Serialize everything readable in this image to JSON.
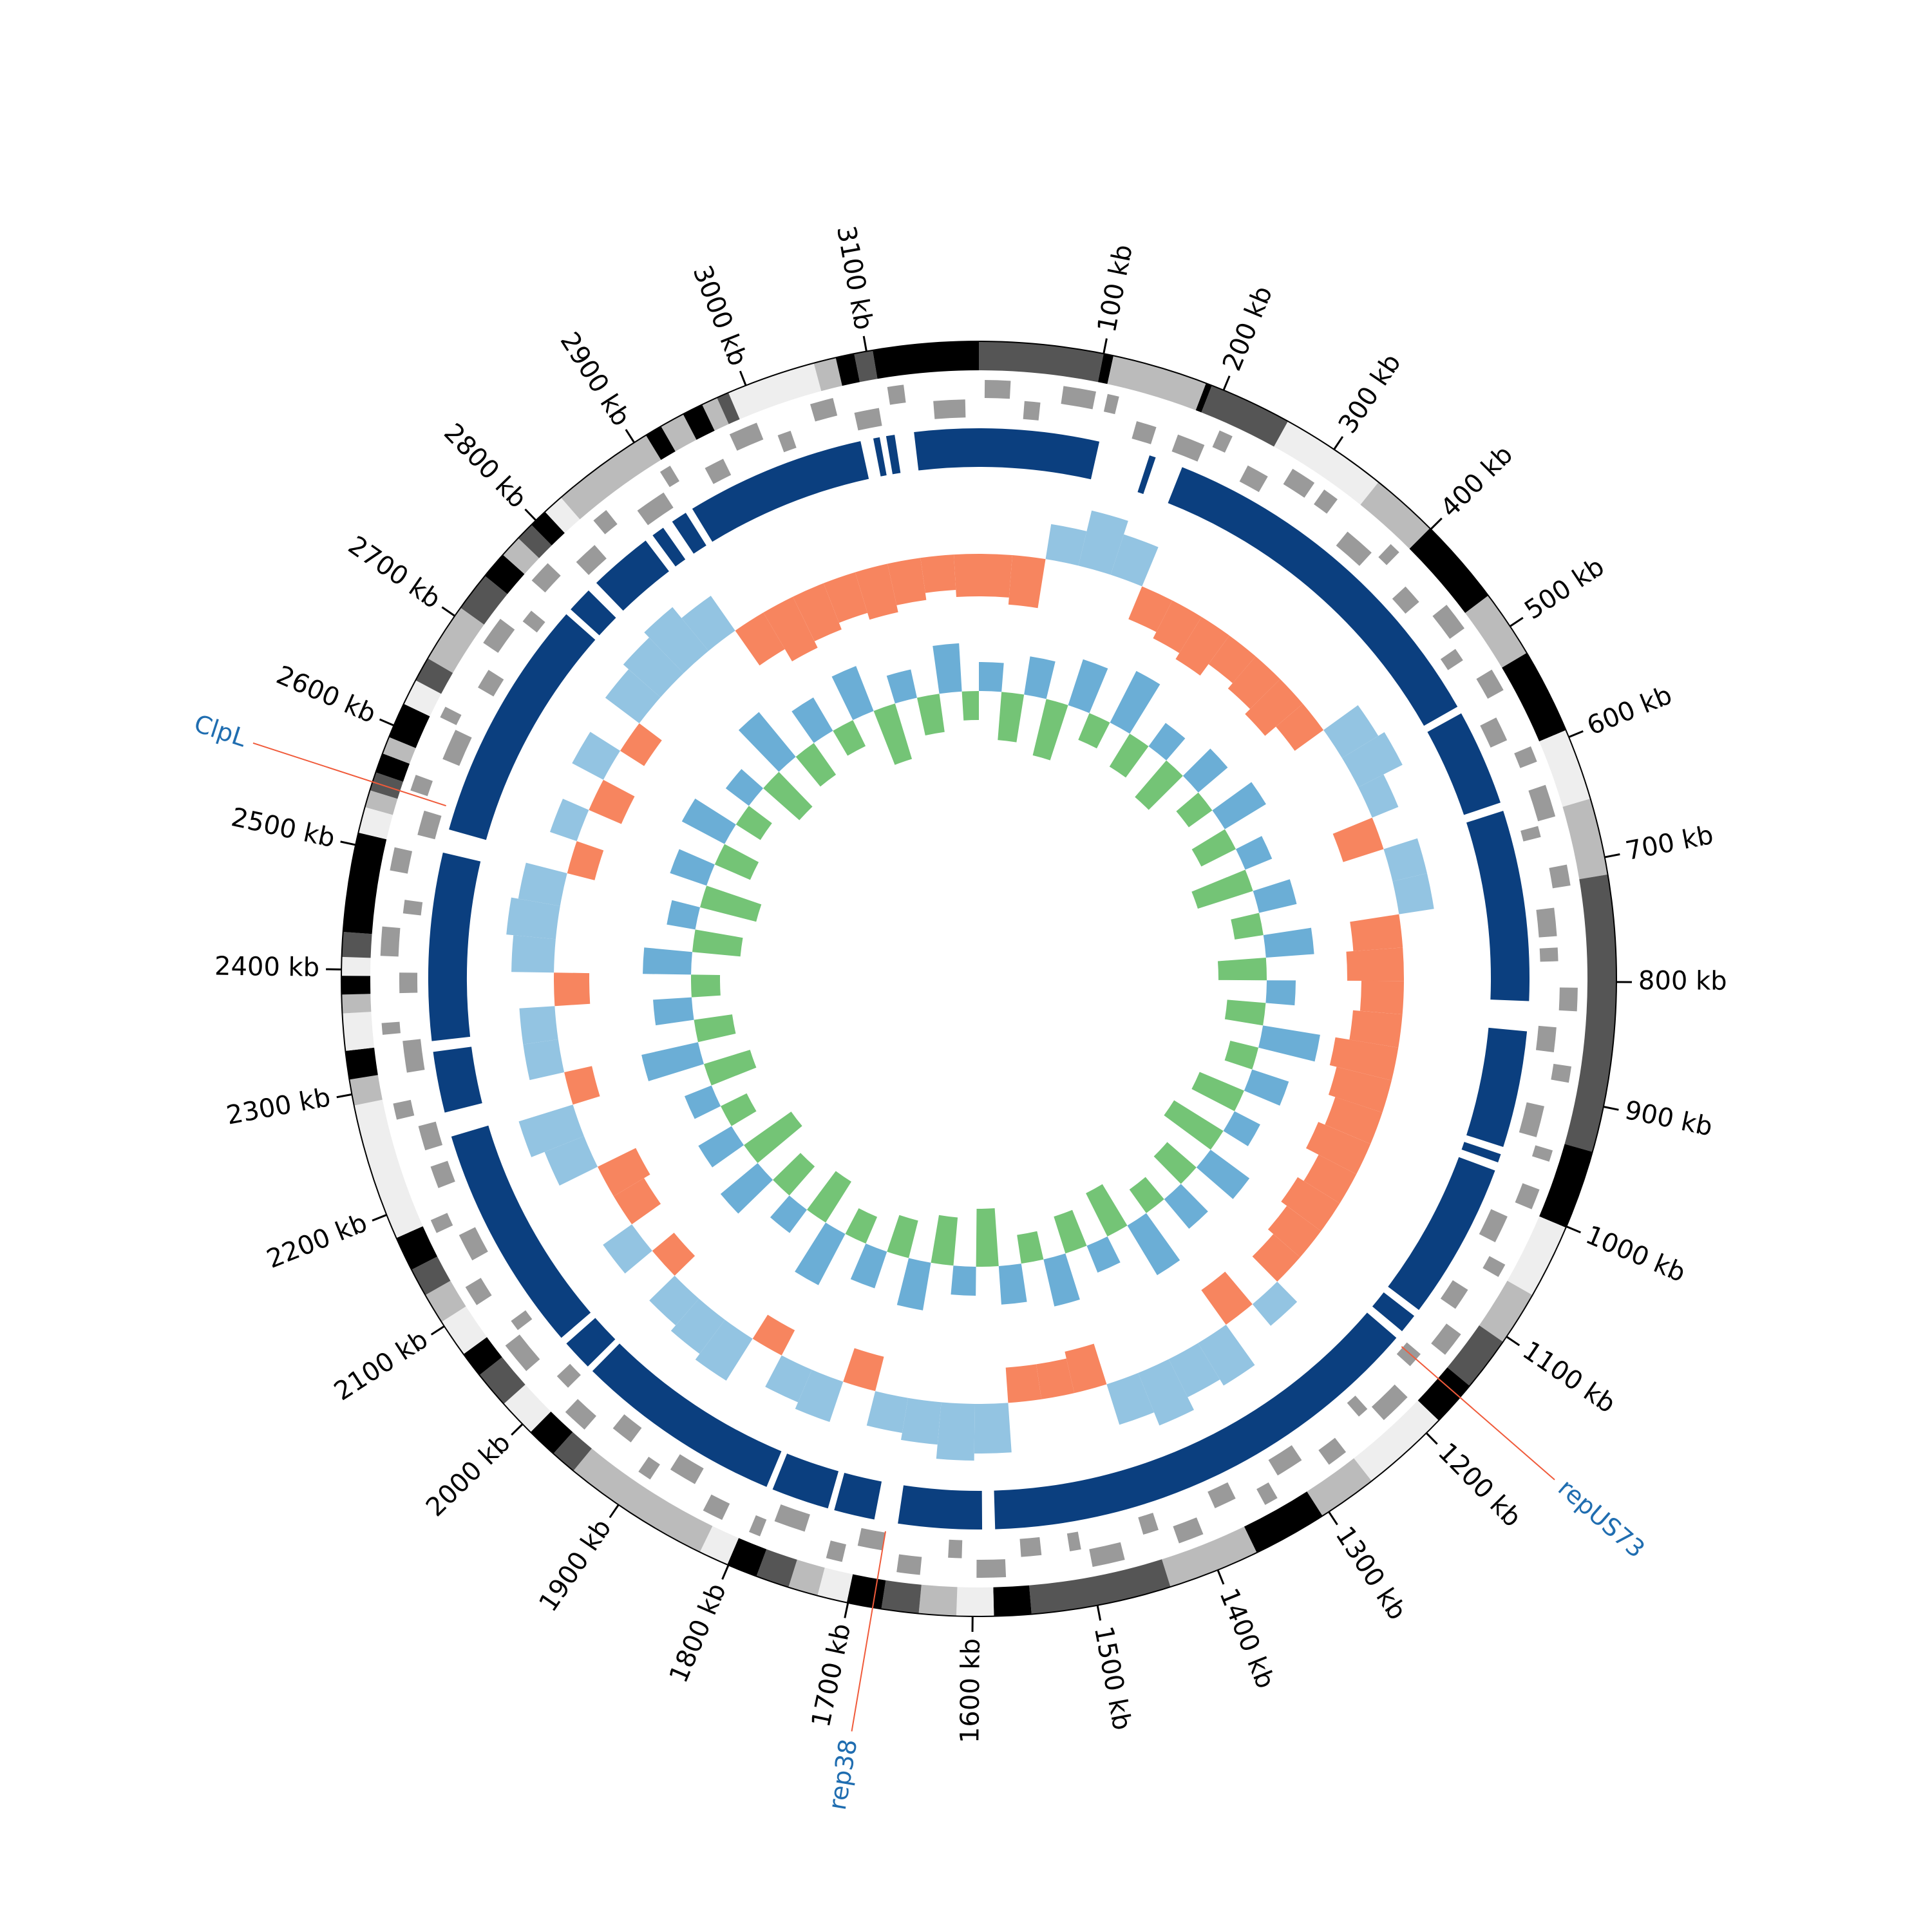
{
  "chart_data": {
    "type": "circular",
    "xlim": [
      0,
      3190
    ],
    "xticks": [
      {
        "value": 100,
        "label": "100 kb"
      },
      {
        "value": 200,
        "label": "200 kb"
      },
      {
        "value": 300,
        "label": "300 kb"
      },
      {
        "value": 400,
        "label": "400 kb"
      },
      {
        "value": 500,
        "label": "500 kb"
      },
      {
        "value": 600,
        "label": "600 kb"
      },
      {
        "value": 700,
        "label": "700 kb"
      },
      {
        "value": 800,
        "label": "800 kb"
      },
      {
        "value": 900,
        "label": "900 kb"
      },
      {
        "value": 1000,
        "label": "1000 kb"
      },
      {
        "value": 1100,
        "label": "1100 kb"
      },
      {
        "value": 1200,
        "label": "1200 kb"
      },
      {
        "value": 1300,
        "label": "1300 kb"
      },
      {
        "value": 1400,
        "label": "1400 kb"
      },
      {
        "value": 1500,
        "label": "1500 kb"
      },
      {
        "value": 1600,
        "label": "1600 kb"
      },
      {
        "value": 1700,
        "label": "1700 kb"
      },
      {
        "value": 1800,
        "label": "1800 kb"
      },
      {
        "value": 1900,
        "label": "1900 kb"
      },
      {
        "value": 2000,
        "label": "2000 kb"
      },
      {
        "value": 2100,
        "label": "2100 kb"
      },
      {
        "value": 2200,
        "label": "2200 kb"
      },
      {
        "value": 2300,
        "label": "2300 kb"
      },
      {
        "value": 2400,
        "label": "2400 kb"
      },
      {
        "value": 2500,
        "label": "2500 kb"
      },
      {
        "value": 2600,
        "label": "2600 kb"
      },
      {
        "value": 2700,
        "label": "2700 kb"
      },
      {
        "value": 2800,
        "label": "2800 kb"
      },
      {
        "value": 2900,
        "label": "2900 kb"
      },
      {
        "value": 3000,
        "label": "3000 kb"
      },
      {
        "value": 3100,
        "label": "3100 kb"
      }
    ],
    "contigs": {
      "starts": [
        0,
        100,
        108,
        185,
        190,
        257,
        344,
        399,
        470,
        525,
        594,
        652,
        714,
        937,
        1001,
        1061,
        1105,
        1149,
        1186,
        1258,
        1306,
        1366,
        1440,
        1553,
        1583,
        1613,
        1643,
        1673,
        1701,
        1725,
        1749,
        1776,
        1801,
        1825,
        1945,
        1966,
        1991,
        2022,
        2052,
        2073,
        2104,
        2129,
        2152,
        2180,
        2291,
        2312,
        2335,
        2365,
        2380,
        2395,
        2410,
        2430,
        2510,
        2531,
        2545,
        2560,
        2576,
        2590,
        2619,
        2640,
        2660,
        2708,
        2740,
        2762,
        2780,
        2795,
        2810,
        2827,
        2911,
        2925,
        2945,
        2962,
        2975,
        2985,
        3057,
        3075,
        3090,
        3105
      ],
      "colors": [
        "#555555",
        "#000000",
        "#bbbbbb",
        "#000000",
        "#555555",
        "#eeeeee",
        "#bbbbbb",
        "#000000",
        "#bbbbbb",
        "#000000",
        "#eeeeee",
        "#bbbbbb",
        "#555555",
        "#000000",
        "#eeeeee",
        "#bbbbbb",
        "#555555",
        "#000000",
        "#eeeeee",
        "#bbbbbb",
        "#000000",
        "#bbbbbb",
        "#555555",
        "#000000",
        "#eeeeee",
        "#bbbbbb",
        "#555555",
        "#000000",
        "#eeeeee",
        "#bbbbbb",
        "#555555",
        "#000000",
        "#eeeeee",
        "#bbbbbb",
        "#555555",
        "#000000",
        "#eeeeee",
        "#555555",
        "#000000",
        "#eeeeee",
        "#bbbbbb",
        "#555555",
        "#000000",
        "#eeeeee",
        "#bbbbbb",
        "#000000",
        "#eeeeee",
        "#bbbbbb",
        "#000000",
        "#eeeeee",
        "#555555",
        "#000000",
        "#eeeeee",
        "#bbbbbb",
        "#555555",
        "#000000",
        "#bbbbbb",
        "#000000",
        "#eeeeee",
        "#555555",
        "#bbbbbb",
        "#555555",
        "#000000",
        "#bbbbbb",
        "#555555",
        "#000000",
        "#eeeeee",
        "#bbbbbb",
        "#000000",
        "#bbbbbb",
        "#000000",
        "#bbbbbb",
        "#555555",
        "#eeeeee",
        "#bbbbbb",
        "#000000",
        "#555555",
        "#000000"
      ]
    },
    "gene_color": "#9a9a9a",
    "genes": [
      [
        5,
        27,
        1
      ],
      [
        40,
        54,
        -1
      ],
      [
        72,
        100,
        1
      ],
      [
        110,
        120,
        1
      ],
      [
        140,
        158,
        -1
      ],
      [
        178,
        203,
        -1
      ],
      [
        210,
        222,
        1
      ],
      [
        245,
        265,
        -1
      ],
      [
        280,
        302,
        1
      ],
      [
        312,
        326,
        1
      ],
      [
        350,
        378,
        -1
      ],
      [
        385,
        395,
        1
      ],
      [
        420,
        438,
        -1
      ],
      [
        455,
        480,
        1
      ],
      [
        490,
        502,
        -1
      ],
      [
        522,
        542,
        1
      ],
      [
        560,
        582,
        -1
      ],
      [
        595,
        609,
        1
      ],
      [
        630,
        658,
        1
      ],
      [
        662,
        672,
        -1
      ],
      [
        700,
        718,
        1
      ],
      [
        735,
        760,
        -1
      ],
      [
        770,
        782,
        -1
      ],
      [
        805,
        825,
        1
      ],
      [
        840,
        862,
        -1
      ],
      [
        872,
        886,
        1
      ],
      [
        910,
        938,
        -1
      ],
      [
        945,
        955,
        1
      ],
      [
        980,
        998,
        1
      ],
      [
        1012,
        1037,
        -1
      ],
      [
        1050,
        1062,
        1
      ],
      [
        1085,
        1105,
        -1
      ],
      [
        1120,
        1142,
        1
      ],
      [
        1155,
        1169,
        -1
      ],
      [
        1190,
        1218,
        1
      ],
      [
        1222,
        1232,
        -1
      ],
      [
        1260,
        1278,
        1
      ],
      [
        1295,
        1320,
        -1
      ],
      [
        1330,
        1342,
        1
      ],
      [
        1362,
        1382,
        -1
      ],
      [
        1400,
        1422,
        1
      ],
      [
        1435,
        1449,
        -1
      ],
      [
        1470,
        1498,
        1
      ],
      [
        1505,
        1515,
        -1
      ],
      [
        1540,
        1558,
        -1
      ],
      [
        1572,
        1597,
        1
      ],
      [
        1610,
        1622,
        -1
      ],
      [
        1645,
        1665,
        1
      ],
      [
        1680,
        1702,
        -1
      ],
      [
        1712,
        1726,
        1
      ],
      [
        1750,
        1778,
        -1
      ],
      [
        1785,
        1795,
        1
      ],
      [
        1820,
        1838,
        1
      ],
      [
        1855,
        1880,
        -1
      ],
      [
        1890,
        1902,
        1
      ],
      [
        1922,
        1942,
        -1
      ],
      [
        1960,
        1982,
        1
      ],
      [
        1995,
        2009,
        -1
      ],
      [
        2030,
        2058,
        1
      ],
      [
        2062,
        2072,
        -1
      ],
      [
        2100,
        2118,
        1
      ],
      [
        2135,
        2160,
        -1
      ],
      [
        2170,
        2182,
        1
      ],
      [
        2205,
        2225,
        -1
      ],
      [
        2240,
        2262,
        -1
      ],
      [
        2272,
        2286,
        1
      ],
      [
        2310,
        2338,
        -1
      ],
      [
        2345,
        2355,
        1
      ],
      [
        2380,
        2398,
        -1
      ],
      [
        2412,
        2437,
        1
      ],
      [
        2450,
        2462,
        -1
      ],
      [
        2485,
        2505,
        1
      ],
      [
        2520,
        2542,
        -1
      ],
      [
        2555,
        2569,
        1
      ],
      [
        2590,
        2618,
        -1
      ],
      [
        2622,
        2632,
        1
      ],
      [
        2660,
        2678,
        -1
      ],
      [
        2695,
        2720,
        1
      ],
      [
        2730,
        2742,
        -1
      ],
      [
        2762,
        2782,
        1
      ],
      [
        2800,
        2822,
        -1
      ],
      [
        2835,
        2849,
        1
      ],
      [
        2870,
        2898,
        -1
      ],
      [
        2905,
        2915,
        1
      ],
      [
        2940,
        2958,
        -1
      ],
      [
        2972,
        2997,
        1
      ],
      [
        3010,
        3022,
        -1
      ],
      [
        3045,
        3065,
        1
      ],
      [
        3080,
        3102,
        -1
      ],
      [
        3112,
        3126,
        1
      ],
      [
        3150,
        3178,
        -1
      ]
    ],
    "block_color": "#0b3f7f",
    "blocks": [
      [
        0,
        112
      ],
      [
        160,
        166
      ],
      [
        192,
        535
      ],
      [
        542,
        632
      ],
      [
        640,
        818
      ],
      [
        846,
        955
      ],
      [
        962,
        970
      ],
      [
        978,
        1125
      ],
      [
        1132,
        1150
      ],
      [
        1158,
        1580
      ],
      [
        1592,
        1670
      ],
      [
        1692,
        1730
      ],
      [
        1736,
        1790
      ],
      [
        1796,
        1990
      ],
      [
        1996,
        2025
      ],
      [
        2032,
        2245
      ],
      [
        2268,
        2325
      ],
      [
        2335,
        2510
      ],
      [
        2532,
        2760
      ],
      [
        2766,
        2790
      ],
      [
        2800,
        2860
      ],
      [
        2868,
        2880
      ],
      [
        2890,
        2905
      ],
      [
        2912,
        3080
      ],
      [
        3092,
        3098
      ],
      [
        3104,
        3112
      ],
      [
        3130,
        3190
      ]
    ],
    "x": [
      0,
      40,
      80,
      120,
      160,
      200,
      240,
      280,
      320,
      360,
      400,
      440,
      480,
      520,
      560,
      600,
      640,
      680,
      720,
      760,
      800,
      840,
      880,
      920,
      960,
      1000,
      1040,
      1080,
      1120,
      1160,
      1200,
      1240,
      1280,
      1320,
      1360,
      1400,
      1440,
      1480,
      1520,
      1560,
      1600,
      1640,
      1680,
      1720,
      1760,
      1800,
      1840,
      1880,
      1920,
      1960,
      2000,
      2040,
      2080,
      2120,
      2160,
      2200,
      2240,
      2280,
      2320,
      2360,
      2400,
      2440,
      2480,
      2520,
      2560,
      2600,
      2640,
      2680,
      2720,
      2760,
      2800,
      2840,
      2880,
      2920,
      2960,
      3000,
      3040,
      3080,
      3120,
      3160
    ],
    "skew": {
      "positive_color": "#93c4e2",
      "negative_color": "#f7855f",
      "values": [
        -0.6,
        -0.7,
        0.5,
        0.8,
        0.6,
        -0.5,
        -0.6,
        -0.7,
        -0.5,
        -0.6,
        -0.7,
        -0.5,
        0.6,
        0.7,
        0.4,
        -0.6,
        0.5,
        0.5,
        -0.7,
        -0.8,
        -0.6,
        -0.7,
        -0.9,
        -0.8,
        -0.7,
        -0.8,
        -0.6,
        -0.7,
        -0.6,
        -0.5,
        0.4,
        -0.6,
        0.7,
        0.6,
        0.8,
        0.6,
        -0.6,
        -0.5,
        -0.5,
        0.7,
        0.8,
        0.6,
        0.5,
        -0.5,
        0.6,
        0.5,
        -0.4,
        0.7,
        0.6,
        0.5,
        -0.4,
        0.5,
        -0.5,
        -0.6,
        0.6,
        0.8,
        -0.4,
        0.5,
        0.5,
        -0.5,
        0.6,
        0.7,
        0.6,
        -0.4,
        0.4,
        -0.5,
        0.5,
        -0.4,
        0.6,
        0.7,
        0.8,
        0.6,
        -0.6,
        -0.8,
        -0.7,
        -0.6,
        -0.7,
        -0.6,
        -0.5,
        -0.6
      ]
    },
    "content": {
      "positive_color": "#6baed6",
      "negative_color": "#74c476",
      "values": [
        0.3,
        -0.5,
        0.4,
        -0.6,
        0.5,
        -0.3,
        0.6,
        -0.4,
        0.3,
        -0.5,
        0.4,
        -0.3,
        0.5,
        -0.4,
        0.3,
        -0.6,
        0.4,
        -0.3,
        0.5,
        -0.5,
        0.3,
        -0.4,
        0.6,
        -0.3,
        0.4,
        -0.5,
        0.3,
        -0.6,
        0.5,
        -0.4,
        0.4,
        -0.3,
        0.6,
        -0.5,
        0.3,
        -0.4,
        0.5,
        -0.3,
        0.4,
        -0.6,
        0.3,
        -0.5,
        0.5,
        -0.4,
        0.4,
        -0.3,
        0.6,
        -0.5,
        0.3,
        -0.4,
        0.5,
        -0.6,
        0.4,
        -0.3,
        0.3,
        -0.5,
        0.6,
        -0.4,
        0.4,
        -0.3,
        0.5,
        -0.5,
        0.3,
        -0.6,
        0.4,
        -0.4,
        0.5,
        -0.3,
        0.3,
        -0.5,
        0.6,
        -0.4,
        0.4,
        -0.3,
        0.5,
        -0.6,
        0.3,
        -0.4,
        0.5,
        -0.3
      ]
    },
    "annotation_line_color": "#f05a3a",
    "annotation_text_color": "#1f6db0",
    "annotations": [
      {
        "label": "ClpL",
        "position": 2552
      },
      {
        "label": "repUS73",
        "position": 1161
      },
      {
        "label": "rep38",
        "position": 1680
      }
    ]
  }
}
